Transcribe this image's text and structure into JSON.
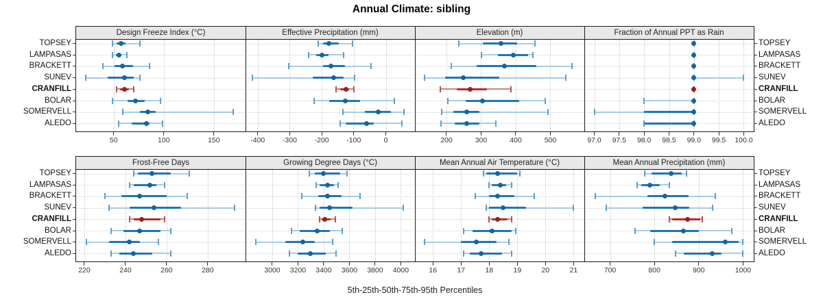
{
  "title": "Annual Climate: sibling",
  "caption": "5th-25th-50th-75th-95th Percentiles",
  "sites": [
    "TOPSEY",
    "LAMPASAS",
    "BRACKETT",
    "SUNEV",
    "CRANFILL",
    "BOLAR",
    "SOMERVELL",
    "ALEDO"
  ],
  "highlight_site": "CRANFILL",
  "percentile_labels": [
    "5th",
    "25th",
    "50th",
    "75th",
    "95th"
  ],
  "colors": {
    "blue_range": "#A8CCE4",
    "blue_cap": "#5B9FCC",
    "blue_iqr": "#1F77B4",
    "blue_dot": "#15659D",
    "red_range": "#CE837E",
    "red_cap": "#B7524D",
    "red_iqr": "#B03030",
    "red_dot": "#9E1D1D",
    "header_bg": "#E8E8E8",
    "panel_border": "#1A1A1A",
    "grid": "#C9C9C9"
  },
  "chart_data": {
    "type": "interval-dotplot",
    "title": "Annual Climate: sibling",
    "xlabel": "5th-25th-50th-75th-95th Percentiles",
    "legend_position": "none",
    "grid": "dotted",
    "categories": [
      "TOPSEY",
      "LAMPASAS",
      "BRACKETT",
      "SUNEV",
      "CRANFILL",
      "BOLAR",
      "SOMERVELL",
      "ALEDO"
    ],
    "panels": [
      {
        "title": "Design Freeze Index (°C)",
        "xlim": [
          12.5,
          181.6
        ],
        "ticks": [
          50,
          100,
          150
        ],
        "tick_labels": [
          "50",
          "100",
          "150"
        ],
        "values": [
          [
            49,
            53,
            57,
            62,
            76
          ],
          [
            49,
            52,
            55,
            58,
            63
          ],
          [
            39,
            51,
            59,
            69,
            86
          ],
          [
            22,
            44,
            61,
            70,
            76
          ],
          [
            53,
            56,
            61,
            65,
            70
          ],
          [
            49,
            64,
            72,
            81,
            97
          ],
          [
            59,
            76,
            84,
            92,
            169
          ],
          [
            55,
            68,
            83,
            86,
            99
          ]
        ]
      },
      {
        "title": "Effective Precipitation (mm)",
        "xlim": [
          -438,
          91
        ],
        "ticks": [
          -400,
          -300,
          -200,
          -100,
          0
        ],
        "tick_labels": [
          "-400",
          "-300",
          "-200",
          "-100",
          "0"
        ],
        "values": [
          [
            -211,
            -196,
            -177,
            -146,
            -104
          ],
          [
            -241,
            -218,
            -200,
            -179,
            -132
          ],
          [
            -304,
            -196,
            -172,
            -127,
            -45
          ],
          [
            -416,
            -228,
            -163,
            -131,
            -98
          ],
          [
            -155,
            -143,
            -125,
            -114,
            -100
          ],
          [
            -223,
            -176,
            -127,
            -81,
            26
          ],
          [
            -133,
            -66,
            -24,
            16,
            56
          ],
          [
            -143,
            -125,
            -61,
            -38,
            51
          ]
        ]
      },
      {
        "title": "Elevation (m)",
        "xlim": [
          109,
          598
        ],
        "ticks": [
          200,
          300,
          400,
          500
        ],
        "tick_labels": [
          "200",
          "300",
          "400",
          "500"
        ],
        "values": [
          [
            236,
            305,
            357,
            403,
            455
          ],
          [
            302,
            349,
            394,
            436,
            450
          ],
          [
            213,
            288,
            368,
            459,
            563
          ],
          [
            137,
            197,
            248,
            352,
            544
          ],
          [
            182,
            230,
            269,
            316,
            386
          ],
          [
            205,
            256,
            304,
            410,
            485
          ],
          [
            187,
            220,
            258,
            296,
            494
          ],
          [
            185,
            223,
            258,
            296,
            342
          ]
        ]
      },
      {
        "title": "Fraction of Annual PPT as Rain",
        "xlim": [
          96.8,
          100.2
        ],
        "ticks": [
          97.0,
          97.5,
          98.0,
          98.5,
          99.0,
          99.5,
          100.0
        ],
        "tick_labels": [
          "97.0",
          "97.5",
          "98.0",
          "98.5",
          "99.0",
          "99.5",
          "100.0"
        ],
        "values": [
          [
            99,
            99,
            99,
            99,
            99
          ],
          [
            99,
            99,
            99,
            99,
            99
          ],
          [
            99,
            99,
            99,
            99,
            99
          ],
          [
            99,
            99,
            99,
            99,
            100
          ],
          [
            99,
            99,
            99,
            99,
            99
          ],
          [
            98,
            99,
            99,
            99,
            99
          ],
          [
            97,
            98,
            99,
            99,
            99
          ],
          [
            98,
            98,
            99,
            99,
            99
          ]
        ]
      },
      {
        "title": "Frost-Free Days",
        "xlim": [
          216,
          298.4
        ],
        "ticks": [
          220,
          240,
          260,
          280
        ],
        "tick_labels": [
          "220",
          "240",
          "260",
          "280"
        ],
        "values": [
          [
            244,
            246,
            253,
            262,
            271
          ],
          [
            242,
            244,
            252,
            255,
            259
          ],
          [
            230,
            238,
            247,
            260,
            270
          ],
          [
            232,
            242,
            254,
            267,
            293
          ],
          [
            242,
            244,
            248,
            257,
            259
          ],
          [
            233,
            239,
            247,
            257,
            262
          ],
          [
            221,
            232,
            242,
            247,
            256
          ],
          [
            233,
            237,
            244,
            253,
            262
          ]
        ]
      },
      {
        "title": "Growing Degree Days (°C)",
        "xlim": [
          2792,
          4110
        ],
        "ticks": [
          3000,
          3200,
          3400,
          3600,
          3800,
          4000
        ],
        "tick_labels": [
          "3000",
          "3200",
          "3400",
          "3600",
          "3800",
          "4000"
        ],
        "values": [
          [
            3290,
            3330,
            3400,
            3530,
            3580
          ],
          [
            3340,
            3370,
            3430,
            3480,
            3515
          ],
          [
            3230,
            3360,
            3430,
            3540,
            3685
          ],
          [
            3335,
            3370,
            3445,
            3625,
            4020
          ],
          [
            3370,
            3385,
            3410,
            3455,
            3490
          ],
          [
            3150,
            3215,
            3350,
            3450,
            3545
          ],
          [
            2870,
            3100,
            3240,
            3330,
            3470
          ],
          [
            3135,
            3200,
            3295,
            3415,
            3495
          ]
        ]
      },
      {
        "title": "Mean Annual Air Temperature (°C)",
        "xlim": [
          15.36,
          21.38
        ],
        "ticks": [
          16,
          17,
          18,
          19,
          20,
          21
        ],
        "tick_labels": [
          "16",
          "17",
          "18",
          "19",
          "20",
          "21"
        ],
        "values": [
          [
            17.8,
            17.9,
            18.3,
            19.0,
            19.1
          ],
          [
            18.0,
            18.1,
            18.4,
            18.6,
            18.8
          ],
          [
            17.5,
            18.0,
            18.3,
            18.9,
            19.6
          ],
          [
            17.9,
            18.0,
            18.5,
            19.3,
            21.0
          ],
          [
            18.0,
            18.1,
            18.3,
            18.65,
            18.8
          ],
          [
            17.1,
            17.4,
            18.1,
            18.8,
            18.95
          ],
          [
            15.7,
            17.0,
            17.55,
            18.25,
            18.7
          ],
          [
            17.1,
            17.3,
            17.7,
            18.45,
            18.8
          ]
        ]
      },
      {
        "title": "Mean Annual Precipitation (mm)",
        "xlim": [
          642,
          1024
        ],
        "ticks": [
          700,
          800,
          900,
          1000
        ],
        "tick_labels": [
          "700",
          "800",
          "900",
          "1000"
        ],
        "values": [
          [
            778,
            794,
            838,
            861,
            873
          ],
          [
            761,
            771,
            790,
            812,
            834
          ],
          [
            666,
            785,
            823,
            877,
            938
          ],
          [
            691,
            773,
            847,
            879,
            931
          ],
          [
            834,
            840,
            874,
            903,
            908
          ],
          [
            757,
            791,
            865,
            900,
            975
          ],
          [
            800,
            840,
            960,
            990,
            1000
          ],
          [
            847,
            866,
            931,
            952,
            1000
          ]
        ]
      }
    ]
  }
}
